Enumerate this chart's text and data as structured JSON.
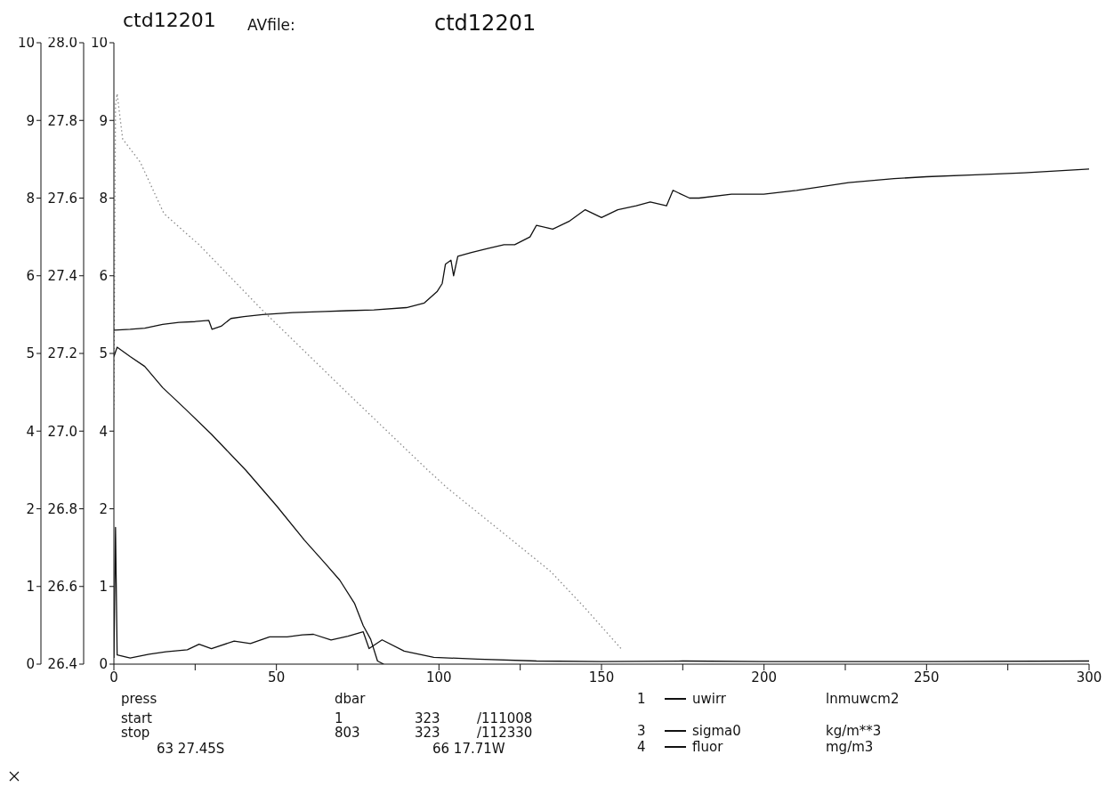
{
  "chart_data": {
    "type": "line",
    "title": "ctd12201",
    "xlabel": "press",
    "annotations": [
      "AVfile:",
      "ctd12201",
      "dbar",
      "start",
      "1",
      "323",
      "/111008",
      "stop",
      "803",
      "323",
      "/112330",
      "63 27.45S",
      "66 17.71W",
      "1",
      "3",
      "4",
      "lnmuwcm2",
      "kg/m**3",
      "mg/m3"
    ],
    "xlim": [
      0,
      300
    ],
    "xticks": [
      0,
      {
        "value": 25,
        "label": null
      },
      50,
      {
        "value": 75,
        "label": null
      },
      100,
      {
        "value": 125,
        "label": null
      },
      150,
      {
        "value": 175,
        "label": null
      },
      200,
      {
        "value": 225,
        "label": null
      },
      250,
      {
        "value": 275,
        "label": null
      },
      300
    ],
    "ylim": [
      0,
      10
    ],
    "yticks": [
      0,
      {
        "value": 1.25,
        "label": "1"
      },
      {
        "value": 2.5,
        "label": "2"
      },
      {
        "value": 3.75,
        "label": "4"
      },
      5,
      {
        "value": 6.25,
        "label": "6"
      },
      {
        "value": 7.5,
        "label": "8"
      },
      {
        "value": 8.75,
        "label": "9"
      },
      10
    ],
    "y2lim": [
      26.4,
      28.0
    ],
    "y2ticks": [
      26.4,
      26.6,
      26.8,
      {
        "value": 27,
        "label": "27.0"
      },
      27.2,
      27.4,
      27.6,
      27.8,
      {
        "value": 28,
        "label": "28.0"
      }
    ],
    "y3lim": [
      0,
      10
    ],
    "y3ticks": [
      0,
      {
        "value": 1.25,
        "label": "1"
      },
      {
        "value": 2.5,
        "label": "2"
      },
      {
        "value": 3.75,
        "label": "4"
      },
      5,
      {
        "value": 6.25,
        "label": "6"
      },
      {
        "value": 7.5,
        "label": "8"
      },
      {
        "value": 8.75,
        "label": "9"
      },
      10
    ],
    "legend": "bottom",
    "series": [
      {
        "name": "uwirr",
        "color": "#111111",
        "axis": "y",
        "x": [
          0,
          1,
          5,
          9.5,
          15,
          21.9,
          30,
          40.6,
          50,
          58.7,
          65,
          69.5,
          74,
          76.7,
          79,
          81.1,
          83
        ],
        "values": [
          4.95,
          5.1,
          4.95,
          4.79,
          4.45,
          4.11,
          3.7,
          3.12,
          2.55,
          1.99,
          1.62,
          1.35,
          0.98,
          0.62,
          0.4,
          0.05,
          0
        ]
      },
      {
        "color": "#8a8a8a",
        "axis": "y",
        "line_style": "dotted",
        "x": [
          0,
          0.5,
          1,
          2.7,
          8.1,
          15.4,
          26.2,
          45.8,
          71.7,
          96.6,
          102.9,
          120,
          134.4,
          145,
          156
        ],
        "values": [
          4.1,
          9.0,
          9.18,
          8.45,
          8.08,
          7.25,
          6.75,
          5.69,
          4.37,
          3.12,
          2.82,
          2.1,
          1.49,
          0.9,
          0.25
        ]
      },
      {
        "name": "sigma0",
        "color": "#111111",
        "axis": "y2",
        "x": [
          0,
          5,
          9.5,
          15,
          20,
          25,
          29.2,
          30.2,
          33,
          36,
          40,
          45.7,
          55,
          65,
          71.7,
          80,
          90,
          95.5,
          99.5,
          101,
          102,
          103.7,
          104.5,
          105.8,
          110,
          115,
          120,
          123.3,
          128,
          130,
          135,
          140,
          145,
          150,
          155,
          160.7,
          165,
          170,
          172,
          177.1,
          180,
          190,
          199.9,
          210,
          226,
          240,
          250,
          265,
          280,
          300
        ],
        "values": [
          27.26,
          27.262,
          27.265,
          27.275,
          27.28,
          27.282,
          27.285,
          27.262,
          27.27,
          27.29,
          27.295,
          27.3,
          27.305,
          27.308,
          27.31,
          27.312,
          27.318,
          27.33,
          27.36,
          27.38,
          27.43,
          27.44,
          27.4,
          27.45,
          27.46,
          27.47,
          27.48,
          27.48,
          27.5,
          27.53,
          27.52,
          27.54,
          27.57,
          27.55,
          27.57,
          27.58,
          27.59,
          27.58,
          27.62,
          27.6,
          27.6,
          27.61,
          27.61,
          27.62,
          27.64,
          27.65,
          27.655,
          27.66,
          27.665,
          27.675
        ]
      },
      {
        "name": "fluor",
        "color": "#111111",
        "axis": "y3",
        "x": [
          0,
          0.5,
          1,
          5,
          10.8,
          16,
          22.6,
          26.2,
          30,
          37,
          42,
          47.9,
          53.3,
          58,
          61.4,
          66.8,
          72,
          76.7,
          78.5,
          82.5,
          89.3,
          98.4,
          111.9,
          130,
          150,
          175,
          200,
          250,
          300
        ],
        "values": [
          0.1,
          2.2,
          0.15,
          0.1,
          0.16,
          0.2,
          0.23,
          0.32,
          0.25,
          0.37,
          0.33,
          0.44,
          0.44,
          0.47,
          0.48,
          0.39,
          0.45,
          0.52,
          0.25,
          0.39,
          0.21,
          0.11,
          0.08,
          0.05,
          0.04,
          0.05,
          0.04,
          0.04,
          0.05
        ]
      }
    ]
  }
}
